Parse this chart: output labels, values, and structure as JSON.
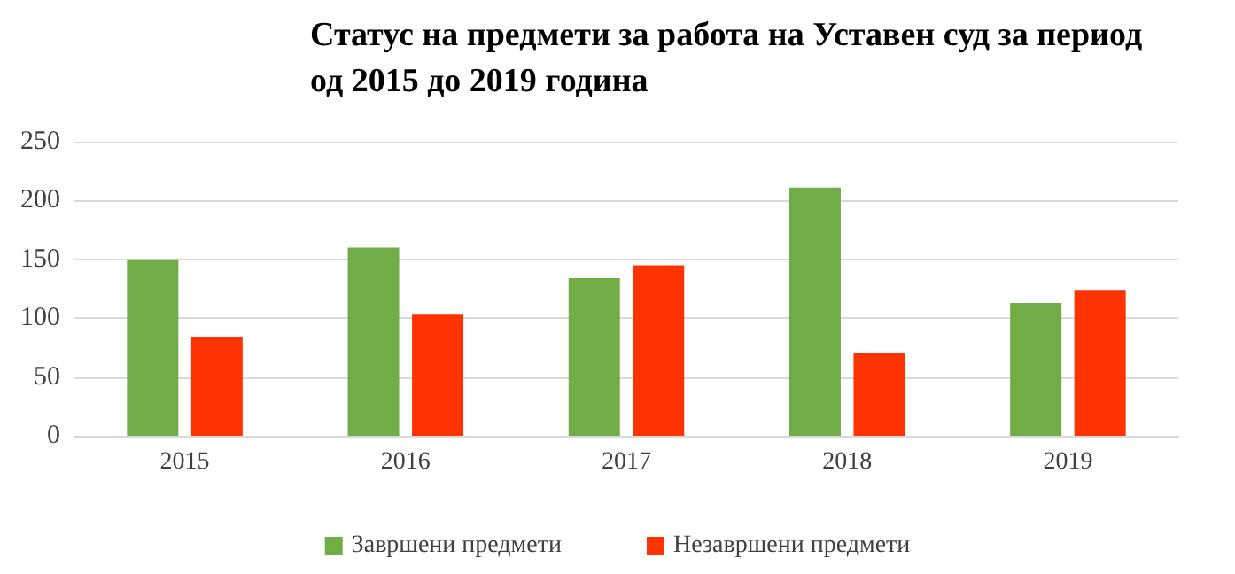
{
  "chart_data": {
    "type": "bar",
    "title": "Статус на предмети за работа на Уставен суд за период\nод 2015 до 2019 година",
    "categories": [
      "2015",
      "2016",
      "2017",
      "2018",
      "2019"
    ],
    "series": [
      {
        "name": "Завршени предмети",
        "color": "#70ad47",
        "values": [
          150,
          160,
          134,
          211,
          113
        ]
      },
      {
        "name": "Незавршени предмети",
        "color": "#ff3300",
        "values": [
          84,
          103,
          145,
          70,
          124
        ]
      }
    ],
    "ylim": [
      0,
      250
    ],
    "yticks": [
      0,
      50,
      100,
      150,
      200,
      250
    ],
    "grid": "y",
    "legend": "bottom"
  }
}
